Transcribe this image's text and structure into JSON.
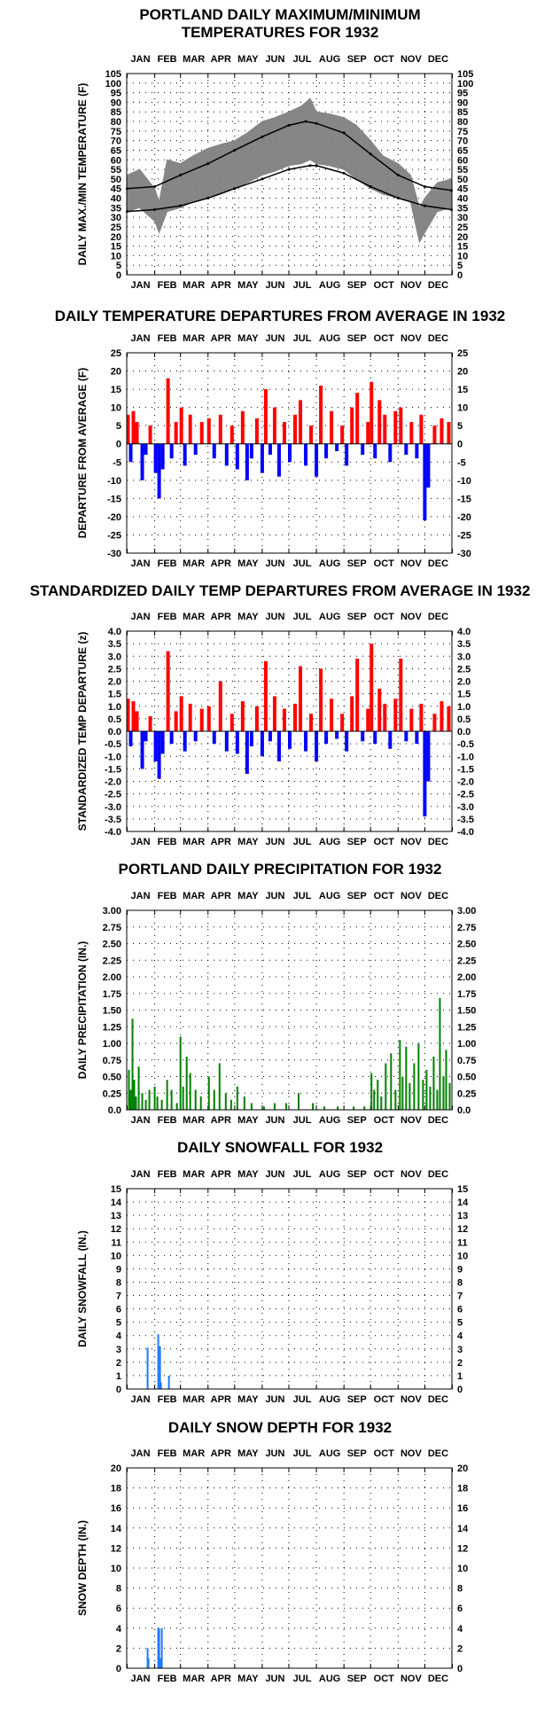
{
  "chart_data": [
    {
      "type": "line",
      "title": "PORTLAND DAILY MAXIMUM/MINIMUM",
      "title_line2": "TEMPERATURES FOR 1932",
      "ylabel": "DAILY MAX./MIN TEMPERATURE (F)",
      "months": [
        "JAN",
        "FEB",
        "MAR",
        "APR",
        "MAY",
        "JUN",
        "JUL",
        "AUG",
        "SEP",
        "OCT",
        "NOV",
        "DEC"
      ],
      "ylim": [
        0,
        105
      ],
      "yticks": [
        "0",
        "5",
        "10",
        "15",
        "20",
        "25",
        "30",
        "35",
        "40",
        "45",
        "50",
        "55",
        "60",
        "65",
        "70",
        "75",
        "80",
        "85",
        "90",
        "95",
        "100",
        "105"
      ],
      "grid": "dotted",
      "series": [
        {
          "role": "daily-range-band",
          "color": "#808080",
          "x": [
            "Jan 1",
            "Jan 15",
            "Feb 1",
            "Feb 6",
            "Feb 15",
            "Mar 1",
            "Mar 15",
            "Apr 1",
            "Apr 15",
            "May 1",
            "May 15",
            "Jun 1",
            "Jun 15",
            "Jul 1",
            "Jul 15",
            "Jul 25",
            "Aug 1",
            "Aug 15",
            "Sep 1",
            "Sep 15",
            "Oct 1",
            "Oct 15",
            "Nov 1",
            "Nov 15",
            "Nov 25",
            "Dec 1",
            "Dec 15",
            "Dec 31"
          ],
          "low": [
            33,
            35,
            28,
            22,
            33,
            35,
            38,
            40,
            42,
            45,
            48,
            52,
            54,
            57,
            58,
            60,
            58,
            57,
            55,
            50,
            45,
            42,
            40,
            38,
            17,
            22,
            33,
            35
          ],
          "high": [
            52,
            55,
            45,
            38,
            60,
            58,
            62,
            66,
            68,
            70,
            74,
            80,
            82,
            85,
            88,
            92,
            85,
            84,
            82,
            78,
            70,
            62,
            58,
            52,
            35,
            40,
            48,
            50
          ]
        },
        {
          "role": "normal-max",
          "color": "#000000",
          "x": [
            "Jan 1",
            "Feb 1",
            "Mar 1",
            "Apr 1",
            "May 1",
            "Jun 1",
            "Jul 1",
            "Jul 20",
            "Aug 1",
            "Sep 1",
            "Oct 1",
            "Nov 1",
            "Dec 1",
            "Dec 31"
          ],
          "values": [
            45,
            46,
            52,
            58,
            65,
            72,
            78,
            80,
            79,
            74,
            63,
            52,
            46,
            44
          ]
        },
        {
          "role": "normal-min",
          "color": "#000000",
          "x": [
            "Jan 1",
            "Feb 1",
            "Mar 1",
            "Apr 1",
            "May 1",
            "Jun 1",
            "Jul 1",
            "Jul 25",
            "Aug 1",
            "Sep 1",
            "Oct 1",
            "Nov 1",
            "Dec 1",
            "Dec 31"
          ],
          "values": [
            33,
            34,
            36,
            40,
            45,
            50,
            55,
            57,
            57,
            53,
            46,
            40,
            36,
            34
          ]
        }
      ]
    },
    {
      "type": "bar",
      "title": "DAILY TEMPERATURE DEPARTURES FROM AVERAGE IN 1932",
      "ylabel": "DEPARTURE FROM AVERAGE (F)",
      "months": [
        "JAN",
        "FEB",
        "MAR",
        "APR",
        "MAY",
        "JUN",
        "JUL",
        "AUG",
        "SEP",
        "OCT",
        "NOV",
        "DEC"
      ],
      "ylim": [
        -30,
        25
      ],
      "yticks": [
        "-30",
        "-25",
        "-20",
        "-15",
        "-10",
        "-5",
        "0",
        "5",
        "10",
        "15",
        "20",
        "25"
      ],
      "pos_color": "#ff0000",
      "neg_color": "#0000ff",
      "x": [
        "Jan 2",
        "Jan 5",
        "Jan 8",
        "Jan 12",
        "Jan 18",
        "Jan 22",
        "Jan 27",
        "Feb 2",
        "Feb 6",
        "Feb 10",
        "Feb 16",
        "Feb 20",
        "Feb 25",
        "Mar 2",
        "Mar 6",
        "Mar 12",
        "Mar 18",
        "Mar 25",
        "Apr 2",
        "Apr 8",
        "Apr 15",
        "Apr 22",
        "Apr 28",
        "May 4",
        "May 10",
        "May 15",
        "May 20",
        "May 26",
        "Jun 1",
        "Jun 5",
        "Jun 10",
        "Jun 15",
        "Jun 20",
        "Jun 26",
        "Jul 2",
        "Jul 8",
        "Jul 14",
        "Jul 20",
        "Jul 26",
        "Aug 1",
        "Aug 6",
        "Aug 12",
        "Aug 18",
        "Aug 24",
        "Aug 30",
        "Sep 4",
        "Sep 10",
        "Sep 16",
        "Sep 22",
        "Sep 28",
        "Oct 2",
        "Oct 6",
        "Oct 11",
        "Oct 17",
        "Oct 23",
        "Oct 29",
        "Nov 4",
        "Nov 10",
        "Nov 16",
        "Nov 22",
        "Nov 27",
        "Dec 1",
        "Dec 5",
        "Dec 12",
        "Dec 20",
        "Dec 28"
      ],
      "values": [
        8,
        -5,
        9,
        6,
        -10,
        -3,
        5,
        -8,
        -15,
        -7,
        18,
        -4,
        6,
        10,
        -6,
        8,
        -3,
        6,
        7,
        -4,
        8,
        -6,
        5,
        -7,
        9,
        -10,
        -4,
        7,
        -8,
        15,
        -3,
        10,
        -9,
        6,
        -5,
        8,
        12,
        -6,
        5,
        -9,
        16,
        -4,
        9,
        -2,
        5,
        -6,
        10,
        14,
        -3,
        6,
        17,
        -4,
        12,
        8,
        -5,
        9,
        10,
        -3,
        6,
        -4,
        8,
        -21,
        -12,
        5,
        7,
        6
      ]
    },
    {
      "type": "bar",
      "title": "STANDARDIZED DAILY TEMP DEPARTURES FROM AVERAGE IN 1932",
      "ylabel": "STANDARDIZED TEMP DEPARTURE (z)",
      "months": [
        "JAN",
        "FEB",
        "MAR",
        "APR",
        "MAY",
        "JUN",
        "JUL",
        "AUG",
        "SEP",
        "OCT",
        "NOV",
        "DEC"
      ],
      "ylim": [
        -4.0,
        4.0
      ],
      "yticks": [
        "-4.0",
        "-3.5",
        "-3.0",
        "-2.5",
        "-2.0",
        "-1.5",
        "-1.0",
        "-0.5",
        "0.0",
        "0.5",
        "1.0",
        "1.5",
        "2.0",
        "2.5",
        "3.0",
        "3.5",
        "4.0"
      ],
      "pos_color": "#ff0000",
      "neg_color": "#0000ff",
      "x": [
        "Jan 2",
        "Jan 5",
        "Jan 8",
        "Jan 12",
        "Jan 18",
        "Jan 22",
        "Jan 27",
        "Feb 2",
        "Feb 6",
        "Feb 10",
        "Feb 16",
        "Feb 20",
        "Feb 25",
        "Mar 2",
        "Mar 6",
        "Mar 12",
        "Mar 18",
        "Mar 25",
        "Apr 2",
        "Apr 8",
        "Apr 15",
        "Apr 22",
        "Apr 28",
        "May 4",
        "May 10",
        "May 15",
        "May 20",
        "May 26",
        "Jun 1",
        "Jun 5",
        "Jun 10",
        "Jun 15",
        "Jun 20",
        "Jun 26",
        "Jul 2",
        "Jul 8",
        "Jul 14",
        "Jul 20",
        "Jul 26",
        "Aug 1",
        "Aug 6",
        "Aug 12",
        "Aug 18",
        "Aug 24",
        "Aug 30",
        "Sep 4",
        "Sep 10",
        "Sep 16",
        "Sep 22",
        "Sep 28",
        "Oct 2",
        "Oct 6",
        "Oct 11",
        "Oct 17",
        "Oct 23",
        "Oct 29",
        "Nov 4",
        "Nov 10",
        "Nov 16",
        "Nov 22",
        "Nov 27",
        "Dec 1",
        "Dec 5",
        "Dec 12",
        "Dec 20",
        "Dec 28"
      ],
      "values": [
        1.3,
        -0.6,
        1.2,
        0.8,
        -1.5,
        -0.4,
        0.6,
        -1.2,
        -1.9,
        -0.9,
        3.2,
        -0.5,
        0.8,
        1.4,
        -0.8,
        1.1,
        -0.4,
        0.9,
        1.0,
        -0.5,
        2.0,
        -0.8,
        0.7,
        -0.9,
        1.2,
        -1.7,
        -0.6,
        1.0,
        -1.0,
        2.8,
        -0.4,
        1.4,
        -1.2,
        0.9,
        -0.7,
        1.1,
        2.6,
        -0.8,
        0.7,
        -1.2,
        2.5,
        -0.5,
        1.3,
        -0.3,
        0.7,
        -0.8,
        1.4,
        2.9,
        -0.4,
        0.9,
        3.5,
        -0.5,
        1.7,
        1.1,
        -0.7,
        1.3,
        2.9,
        -0.4,
        0.9,
        -0.5,
        1.1,
        -3.4,
        -2.0,
        0.7,
        1.2,
        1.0
      ]
    },
    {
      "type": "bar",
      "title": "PORTLAND DAILY PRECIPITATION FOR 1932",
      "ylabel": "DAILY PRECIPITATION (IN.)",
      "months": [
        "JAN",
        "FEB",
        "MAR",
        "APR",
        "MAY",
        "JUN",
        "JUL",
        "AUG",
        "SEP",
        "OCT",
        "NOV",
        "DEC"
      ],
      "ylim": [
        0,
        3.0
      ],
      "yticks": [
        "0.0",
        "0.25",
        "0.50",
        "0.75",
        "1.00",
        "1.25",
        "1.50",
        "1.75",
        "2.00",
        "2.25",
        "2.50",
        "2.75",
        "3.00"
      ],
      "color": "#008000",
      "x": [
        "Jan 3",
        "Jan 5",
        "Jan 7",
        "Jan 9",
        "Jan 11",
        "Jan 14",
        "Jan 18",
        "Jan 22",
        "Jan 26",
        "Feb 1",
        "Feb 4",
        "Feb 9",
        "Feb 15",
        "Feb 20",
        "Feb 26",
        "Mar 1",
        "Mar 4",
        "Mar 8",
        "Mar 12",
        "Mar 18",
        "Mar 24",
        "Apr 2",
        "Apr 8",
        "Apr 14",
        "Apr 21",
        "Apr 27",
        "May 4",
        "May 12",
        "May 20",
        "Jun 3",
        "Jun 15",
        "Jun 28",
        "Jul 12",
        "Jul 28",
        "Aug 10",
        "Aug 25",
        "Sep 12",
        "Sep 24",
        "Oct 2",
        "Oct 5",
        "Oct 9",
        "Oct 13",
        "Oct 18",
        "Oct 24",
        "Oct 29",
        "Nov 3",
        "Nov 6",
        "Nov 10",
        "Nov 14",
        "Nov 19",
        "Nov 24",
        "Nov 29",
        "Dec 3",
        "Dec 7",
        "Dec 11",
        "Dec 15",
        "Dec 18",
        "Dec 22",
        "Dec 25",
        "Dec 29"
      ],
      "values": [
        0.6,
        0.3,
        1.37,
        0.45,
        0.2,
        0.65,
        0.25,
        0.15,
        0.3,
        0.35,
        0.2,
        0.15,
        0.45,
        0.3,
        0.1,
        1.1,
        0.35,
        0.8,
        0.55,
        0.3,
        0.2,
        0.5,
        0.3,
        0.7,
        0.25,
        0.15,
        0.35,
        0.2,
        0.1,
        0.05,
        0.1,
        0.1,
        0.25,
        0.1,
        0.05,
        0.05,
        0.05,
        0.05,
        0.55,
        0.3,
        0.45,
        0.2,
        0.7,
        0.85,
        0.3,
        1.05,
        0.5,
        0.95,
        0.4,
        0.7,
        1.0,
        0.45,
        0.6,
        0.35,
        0.8,
        0.3,
        1.68,
        0.5,
        0.9,
        0.4
      ]
    },
    {
      "type": "bar",
      "title": "DAILY SNOWFALL FOR 1932",
      "ylabel": "DAILY SNOWFALL (IN.)",
      "months": [
        "JAN",
        "FEB",
        "MAR",
        "APR",
        "MAY",
        "JUN",
        "JUL",
        "AUG",
        "SEP",
        "OCT",
        "NOV",
        "DEC"
      ],
      "ylim": [
        0,
        15
      ],
      "yticks": [
        "0",
        "1",
        "2",
        "3",
        "4",
        "5",
        "6",
        "7",
        "8",
        "9",
        "10",
        "11",
        "12",
        "13",
        "14",
        "15"
      ],
      "color": "#1f78ff",
      "x": [
        "Jan 24",
        "Feb 5",
        "Feb 7",
        "Feb 8",
        "Feb 17"
      ],
      "values": [
        3.1,
        4.1,
        3.2,
        0.5,
        1.0
      ]
    },
    {
      "type": "bar",
      "title": "DAILY SNOW DEPTH FOR 1932",
      "ylabel": "SNOW DEPTH (IN.)",
      "months": [
        "JAN",
        "FEB",
        "MAR",
        "APR",
        "MAY",
        "JUN",
        "JUL",
        "AUG",
        "SEP",
        "OCT",
        "NOV",
        "DEC"
      ],
      "ylim": [
        0,
        20
      ],
      "yticks": [
        "0",
        "2",
        "4",
        "6",
        "8",
        "10",
        "12",
        "14",
        "16",
        "18",
        "20"
      ],
      "color": "#1f78ff",
      "x": [
        "Jan 24",
        "Jan 25",
        "Feb 5",
        "Feb 6",
        "Feb 7",
        "Feb 8",
        "Feb 9"
      ],
      "values": [
        2,
        1,
        4,
        4,
        1,
        1,
        4
      ]
    }
  ]
}
